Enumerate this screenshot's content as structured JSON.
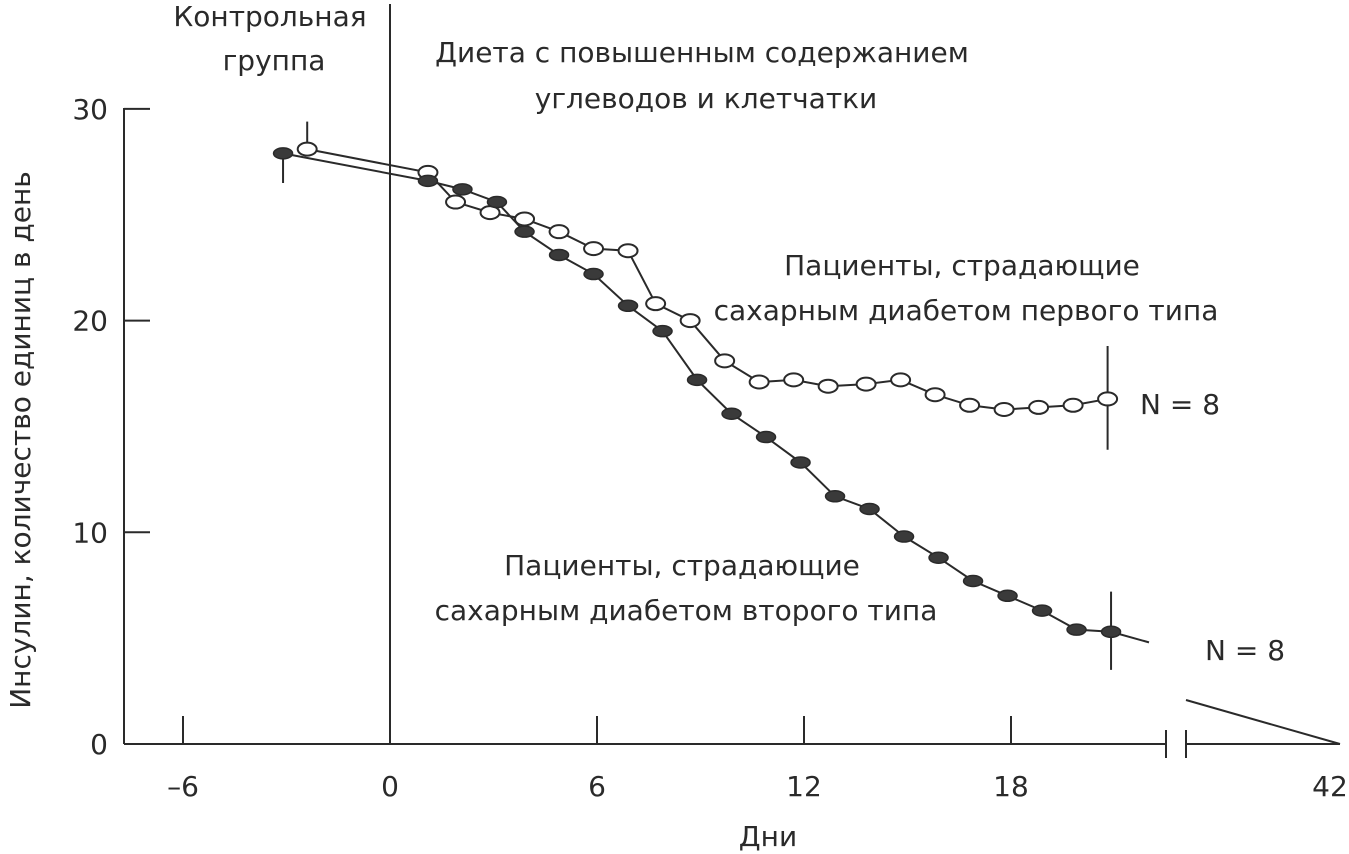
{
  "chart_data": {
    "type": "line",
    "xlabel": "Дни",
    "ylabel": "Инсулин, количество единиц в день",
    "xlim": [
      -8,
      42
    ],
    "ylim": [
      0,
      30
    ],
    "x_ticks": [
      -6,
      0,
      6,
      12,
      18,
      42
    ],
    "y_ticks": [
      0,
      10,
      20,
      30
    ],
    "axis_break": true,
    "grid": false,
    "annotations": {
      "control": [
        "Контрольная",
        "группа"
      ],
      "diet": [
        "Диета с повышенным содержанием",
        "углеводов и клетчатки"
      ],
      "type1": [
        "Пациенты, страдающие",
        "сахарным диабетом первого типа"
      ],
      "type2": [
        "Пациенты, страдающие",
        "сахарным диабетом второго типа"
      ],
      "n_type1": "N = 8",
      "n_type2": "N = 8"
    },
    "series": [
      {
        "marker": "open",
        "x": [
          -2.4,
          1.1,
          1.9,
          2.9,
          3.9,
          4.9,
          5.9,
          6.9,
          7.7,
          8.7,
          9.7,
          10.7,
          11.7,
          12.7,
          13.8,
          14.8,
          15.8,
          16.8,
          17.8,
          18.8,
          19.8,
          20.8
        ],
        "y": [
          28.1,
          27.0,
          25.6,
          25.1,
          24.8,
          24.2,
          23.4,
          23.3,
          20.8,
          20.0,
          18.1,
          17.1,
          17.2,
          16.9,
          17.0,
          17.2,
          16.5,
          16.0,
          15.8,
          15.9,
          16.0,
          16.3
        ],
        "error_bars": [
          {
            "x": -2.4,
            "low": 28.1,
            "high": 29.4
          },
          {
            "x": 20.8,
            "low": 13.9,
            "high": 18.8
          }
        ]
      },
      {
        "marker": "filled",
        "x": [
          -3.1,
          1.1,
          2.1,
          3.1,
          3.9,
          4.9,
          5.9,
          6.9,
          7.9,
          8.9,
          9.9,
          10.9,
          11.9,
          12.9,
          13.9,
          14.9,
          15.9,
          16.9,
          17.9,
          18.9,
          19.9,
          20.9,
          22.0
        ],
        "y": [
          27.9,
          26.6,
          26.2,
          25.6,
          24.2,
          23.1,
          22.2,
          20.7,
          19.5,
          17.2,
          15.6,
          14.5,
          13.3,
          11.7,
          11.1,
          9.8,
          8.8,
          7.7,
          7.0,
          6.3,
          5.4,
          5.3,
          4.8
        ],
        "error_bars": [
          {
            "x": -3.1,
            "low": 26.5,
            "high": 27.9
          },
          {
            "x": 20.9,
            "low": 3.5,
            "high": 7.2
          }
        ]
      }
    ]
  }
}
